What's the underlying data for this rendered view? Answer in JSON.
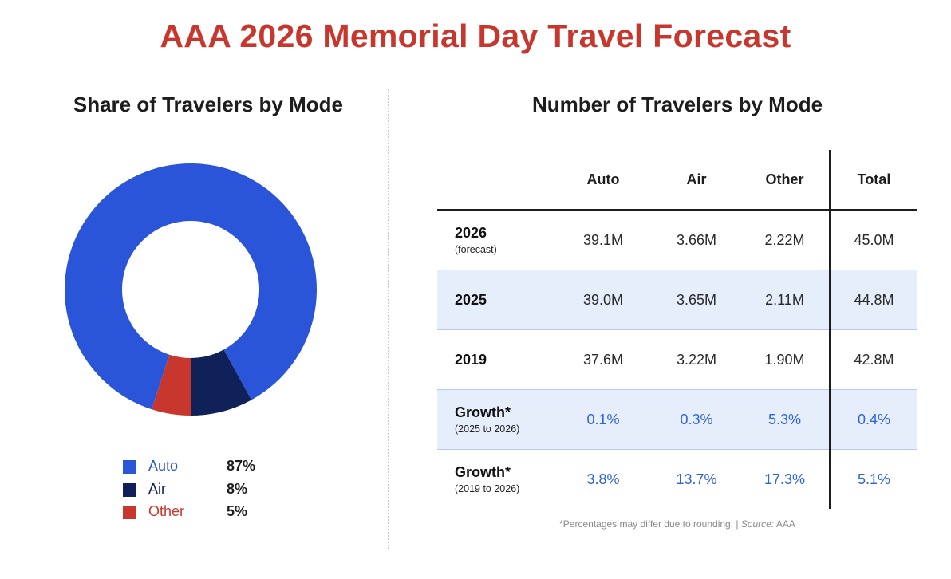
{
  "title": "AAA 2026 Memorial Day Travel Forecast",
  "colors": {
    "title": "#c8372d",
    "auto": "#2a55d9",
    "air": "#0f2158",
    "other": "#c8372d",
    "shaded_row": "#e6edfb",
    "growth_text": "#2f63d6"
  },
  "left_panel": {
    "title": "Share of Travelers by Mode"
  },
  "right_panel": {
    "title": "Number of Travelers by Mode"
  },
  "chart_data": [
    {
      "type": "pie",
      "title": "Share of Travelers by Mode",
      "donut": true,
      "legend_position": "bottom",
      "categories": [
        "Auto",
        "Air",
        "Other"
      ],
      "values": [
        87,
        8,
        5
      ],
      "value_labels": [
        "87%",
        "8%",
        "5%"
      ],
      "colors": [
        "#2a55d9",
        "#0f2158",
        "#c8372d"
      ]
    },
    {
      "type": "table",
      "title": "Number of Travelers by Mode",
      "columns": [
        "Auto",
        "Air",
        "Other",
        "Total"
      ],
      "rows": [
        {
          "label": "2026",
          "sublabel": "(forecast)",
          "shaded": false,
          "growth": false,
          "values": [
            "39.1M",
            "3.66M",
            "2.22M",
            "45.0M"
          ]
        },
        {
          "label": "2025",
          "sublabel": "",
          "shaded": true,
          "growth": false,
          "values": [
            "39.0M",
            "3.65M",
            "2.11M",
            "44.8M"
          ]
        },
        {
          "label": "2019",
          "sublabel": "",
          "shaded": false,
          "growth": false,
          "values": [
            "37.6M",
            "3.22M",
            "1.90M",
            "42.8M"
          ]
        },
        {
          "label": "Growth*",
          "sublabel": "(2025 to 2026)",
          "shaded": true,
          "growth": true,
          "values": [
            "0.1%",
            "0.3%",
            "5.3%",
            "0.4%"
          ]
        },
        {
          "label": "Growth*",
          "sublabel": "(2019 to 2026)",
          "shaded": false,
          "growth": true,
          "values": [
            "3.8%",
            "13.7%",
            "17.3%",
            "5.1%"
          ]
        }
      ],
      "footnote": "*Percentages may differ due to rounding. | ",
      "source_label": "Source:",
      "source": " AAA"
    }
  ]
}
